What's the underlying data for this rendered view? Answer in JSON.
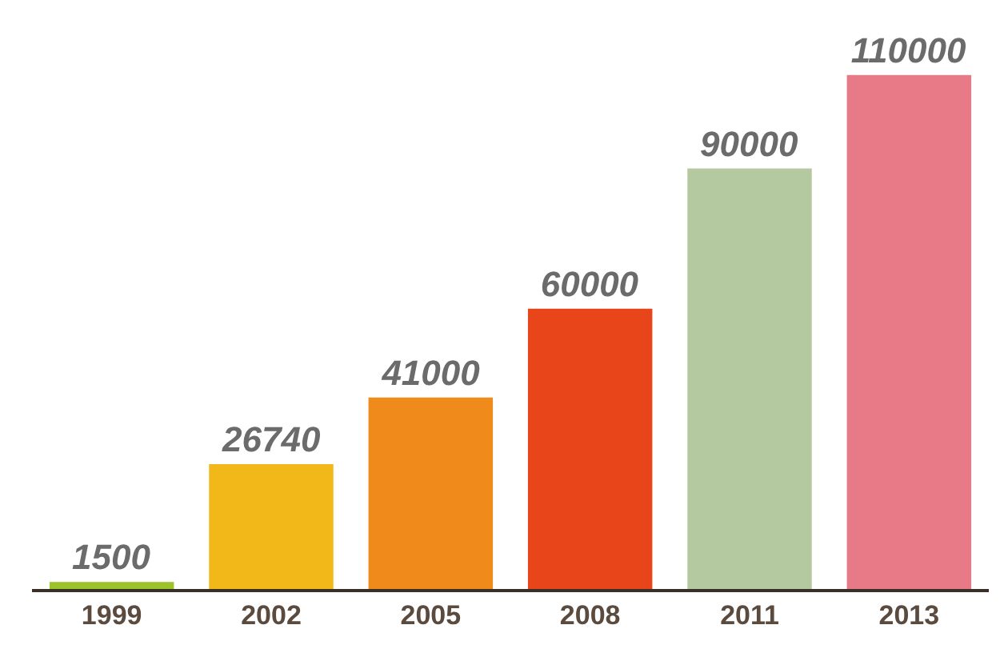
{
  "chart_data": {
    "type": "bar",
    "categories": [
      "1999",
      "2002",
      "2005",
      "2008",
      "2011",
      "2013"
    ],
    "values": [
      1500,
      26740,
      41000,
      60000,
      90000,
      110000
    ],
    "colors": [
      "#9dc32a",
      "#f2b81a",
      "#f08a1a",
      "#e8451a",
      "#b5c9a0",
      "#e87a88"
    ],
    "data_labels": true,
    "grid": false,
    "legend": false
  }
}
